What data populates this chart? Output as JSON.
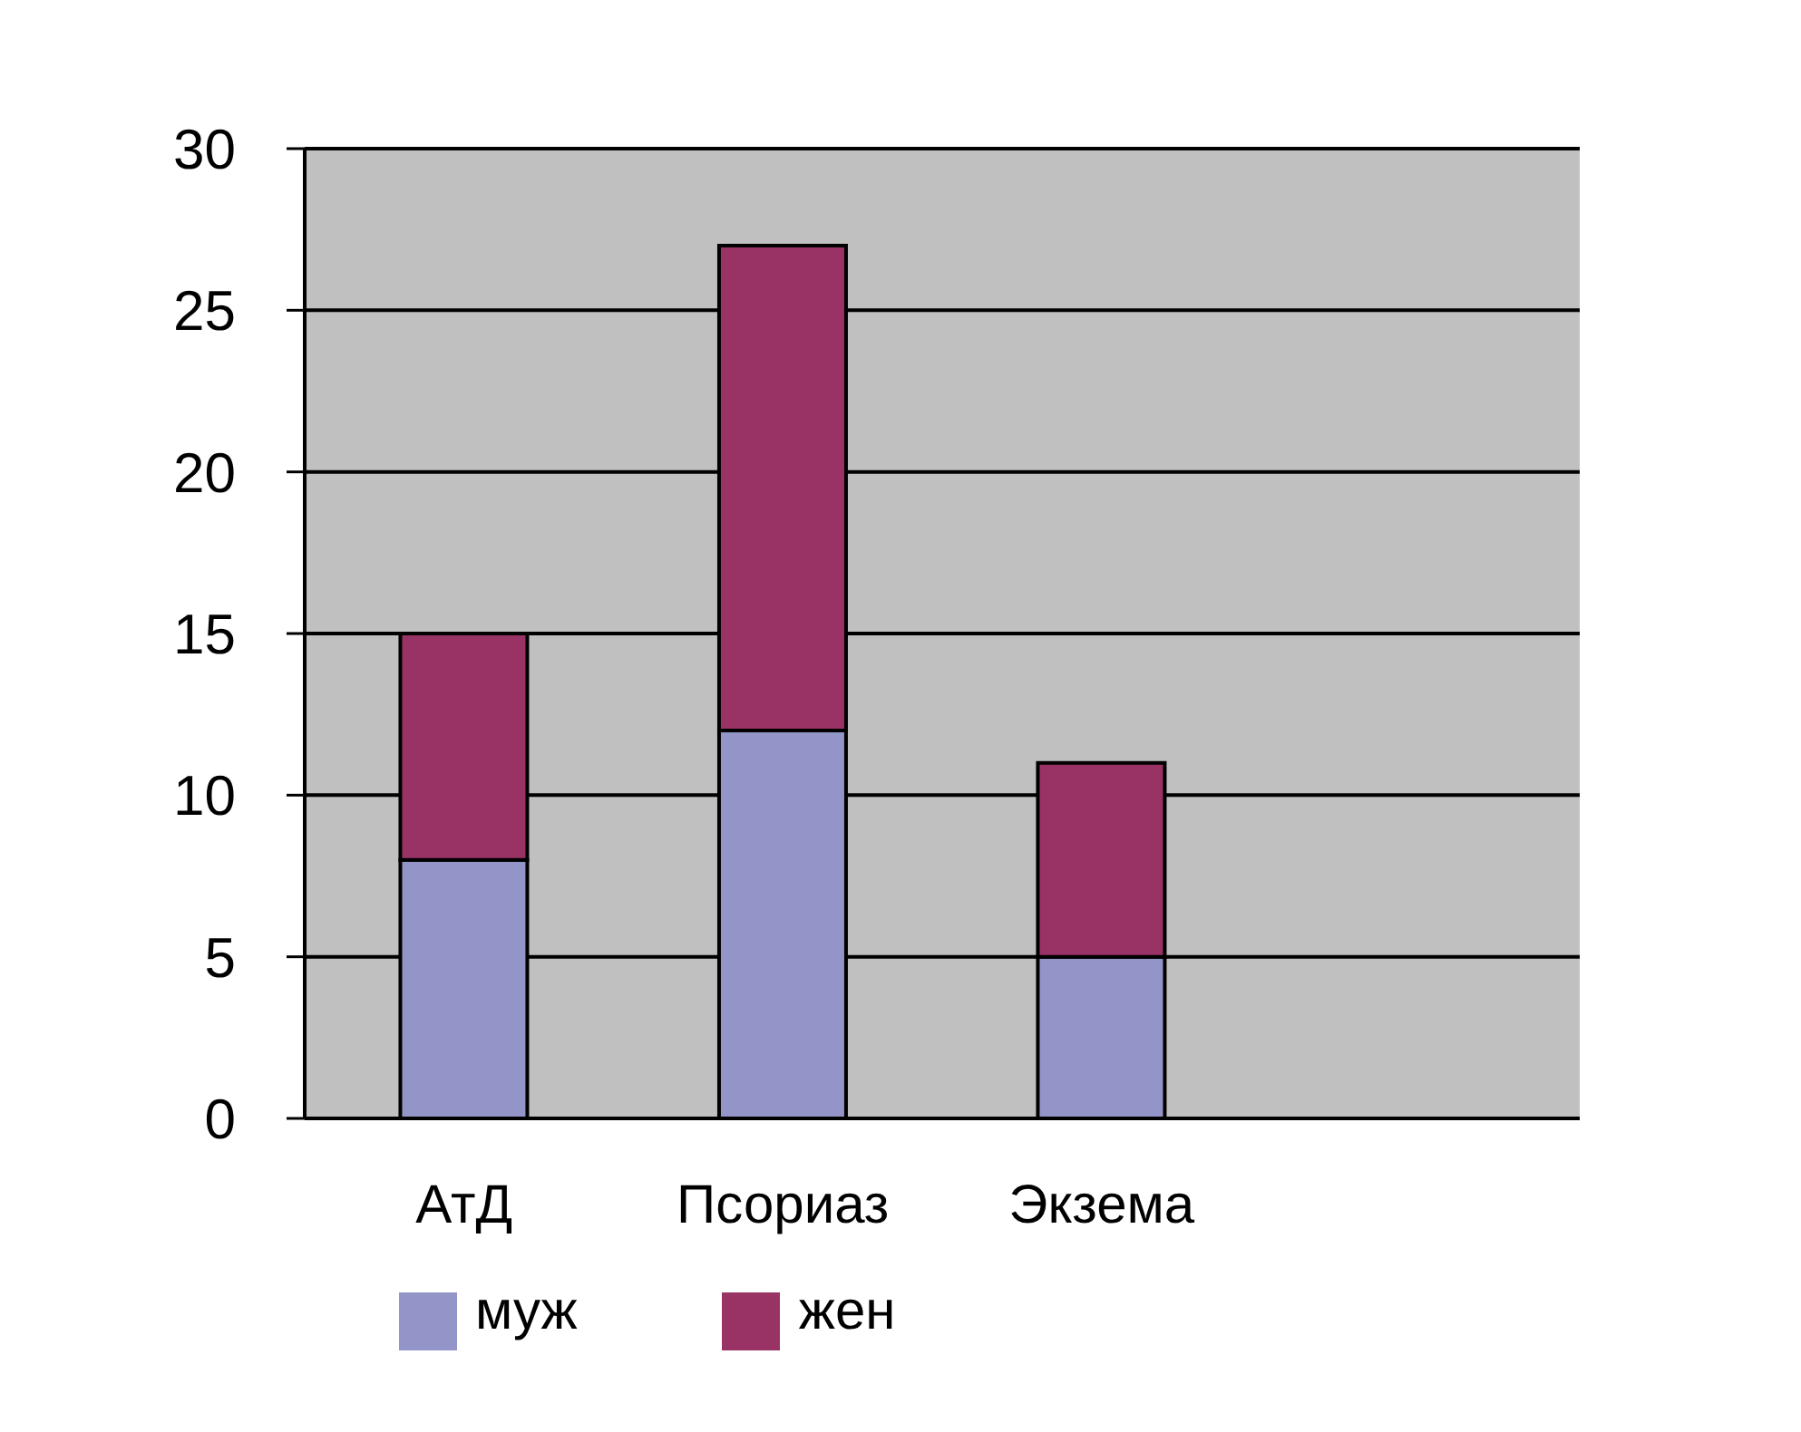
{
  "chart_data": {
    "type": "bar",
    "stacked": true,
    "categories": [
      "АтД",
      "Псориаз",
      "Экзема",
      null
    ],
    "series": [
      {
        "name": "муж",
        "color": "#9395c9",
        "values": [
          8,
          12,
          5,
          null
        ]
      },
      {
        "name": "жен",
        "color": "#993366",
        "values": [
          7,
          15,
          6,
          null
        ]
      }
    ],
    "ylim": [
      0,
      30
    ],
    "yticks": [
      0,
      5,
      10,
      15,
      20,
      25,
      30
    ],
    "grid": "y",
    "legend": "bottom"
  }
}
